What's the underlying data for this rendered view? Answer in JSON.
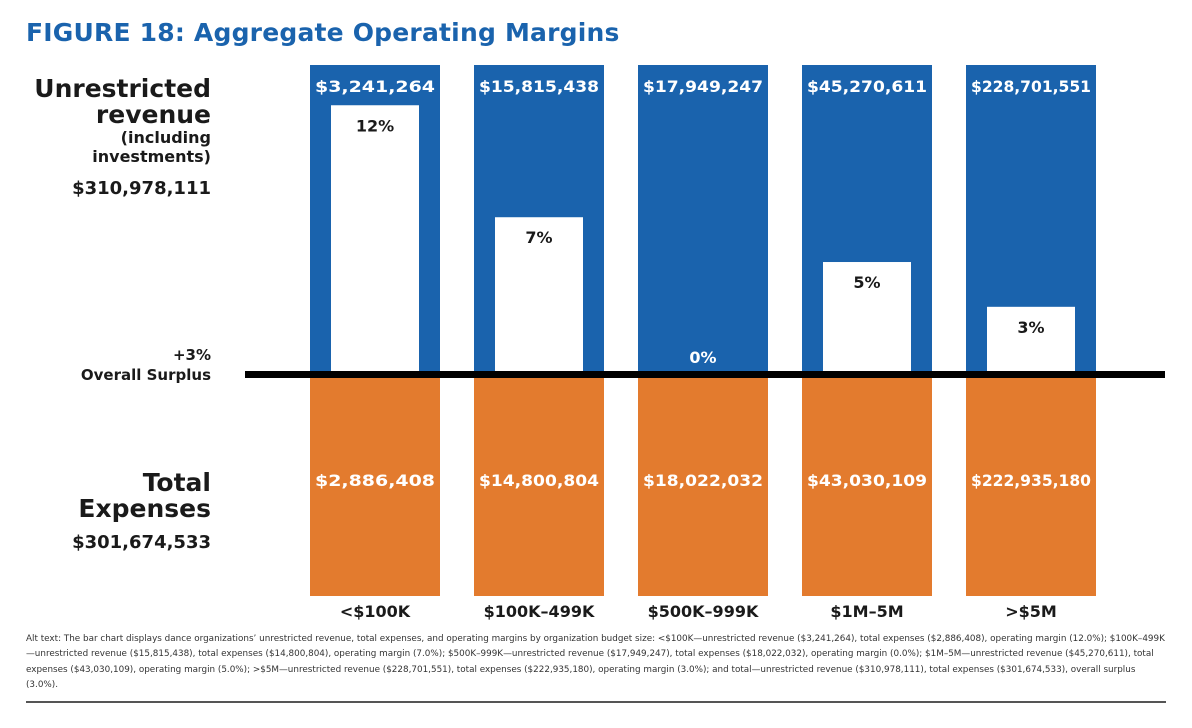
{
  "title": "FIGURE 18: Aggregate Operating Margins",
  "left_labels": {
    "revenue_title": [
      "Unrestricted",
      "revenue"
    ],
    "revenue_subtitle": [
      "(including",
      "investments)"
    ],
    "revenue_total": "$310,978,111",
    "surplus_pct": "+3%",
    "surplus_label": "Overall Surplus",
    "expenses_title": [
      "Total",
      "Expenses"
    ],
    "expenses_total": "$301,674,533"
  },
  "chart_data": {
    "type": "bar",
    "categories": [
      "<$100K",
      "$100K–499K",
      "$500K–999K",
      "$1M–5M",
      ">$5M"
    ],
    "series": [
      {
        "name": "Unrestricted revenue (including investments)",
        "values": [
          3241264,
          15815438,
          17949247,
          45270611,
          228701551
        ],
        "labels": [
          "$3,241,264",
          "$15,815,438",
          "$17,949,247",
          "$45,270,611",
          "$228,701,551"
        ]
      },
      {
        "name": "Total Expenses",
        "values": [
          2886408,
          14800804,
          18022032,
          43030109,
          222935180
        ],
        "labels": [
          "$2,886,408",
          "$14,800,804",
          "$18,022,032",
          "$43,030,109",
          "$222,935,180"
        ]
      },
      {
        "name": "Operating margin",
        "values": [
          12,
          7,
          0,
          5,
          3
        ],
        "labels": [
          "12%",
          "7%",
          "0%",
          "5%",
          "3%"
        ]
      }
    ],
    "margin_axis_max": 13.44,
    "colors": {
      "revenue": "#1a63ad",
      "expenses": "#e37b2e",
      "margin": "#ffffff",
      "baseline": "#000000"
    }
  },
  "alt_text": "Alt text: The bar chart displays dance organizations’ unrestricted revenue, total expenses, and operating margins by organization budget size: <$100K—unrestricted revenue ($3,241,264), total expenses ($2,886,408), operating margin (12.0%); $100K–499K—unrestricted revenue ($15,815,438), total expenses ($14,800,804), operating margin (7.0%); $500K–999K—unrestricted revenue ($17,949,247), total expenses ($18,022,032), operating margin (0.0%); $1M–5M—unrestricted revenue ($45,270,611), total expenses ($43,030,109), operating margin (5.0%); >$5M—unrestricted revenue ($228,701,551), total expenses ($222,935,180), operating margin (3.0%); and total—unrestricted revenue ($310,978,111), total expenses ($301,674,533), overall surplus (3.0%)."
}
